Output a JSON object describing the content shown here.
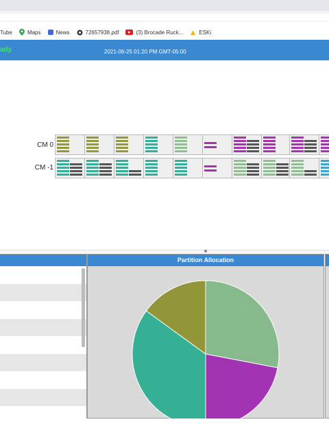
{
  "browser": {
    "bookmarks": [
      {
        "label": "Tube",
        "icon": "youtube-icon",
        "color": ""
      },
      {
        "label": "Maps",
        "icon": "maps-pin-icon",
        "color": "#34a853"
      },
      {
        "label": "News",
        "icon": "news-icon",
        "color": "#4169e1"
      },
      {
        "label": "72657938.pdf",
        "icon": "pdf-globe-icon",
        "color": "#333333"
      },
      {
        "label": "(3) Brocade Ruck...",
        "icon": "youtube-icon",
        "color": "#e02020"
      },
      {
        "label": "ESKi",
        "icon": "eski-icon",
        "color": "#f2b316"
      }
    ]
  },
  "header": {
    "status": "ady",
    "timestamp": "2021-06-25 01:20 PM GMT-05:00",
    "status_color": "#46e06b",
    "bar_color": "#3a88d2"
  },
  "chassis": {
    "rows": [
      {
        "label": "CM 0"
      },
      {
        "label": "CM -1"
      }
    ],
    "colors": {
      "olive": "#949a3a",
      "teal": "#2eb39a",
      "sage": "#8fbf8f",
      "purple": "#a833b0",
      "gray": "#555555",
      "cyan": "#33aad0"
    }
  },
  "panels": {
    "partition_title": "Partition Allocation"
  },
  "chart_data": {
    "type": "pie",
    "title": "Partition Allocation",
    "slices": [
      {
        "value": 28,
        "color": "#86b98b"
      },
      {
        "value": 22,
        "color": "#a233b2"
      },
      {
        "value": 35,
        "color": "#35b094"
      },
      {
        "value": 15,
        "color": "#939638"
      }
    ]
  }
}
